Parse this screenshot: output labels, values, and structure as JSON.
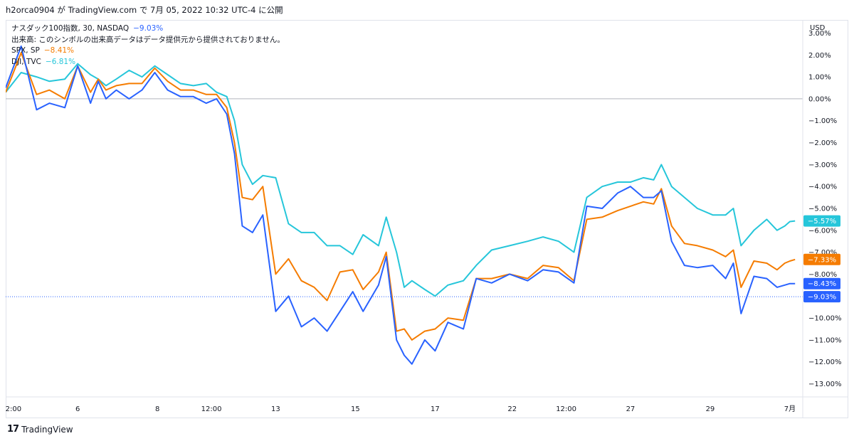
{
  "header": {
    "text": "h2orca0904 が TradingView.com で 7月 05, 2022 10:32 UTC-4 に公開"
  },
  "legend": {
    "main_name": "ナスダック100指数, 30, NASDAQ",
    "main_value": "−9.03%",
    "volume_note": "出来高: このシンボルの出来高データはデータ提供元から提供されておりません。",
    "spx_name": "SPX, SP",
    "spx_value": "−8.41%",
    "dji_name": "DJI, TVC",
    "dji_value": "−6.81%"
  },
  "footer": {
    "logo": "17",
    "brand": "TradingView"
  },
  "chart_data": {
    "type": "line",
    "ylabel": "USD",
    "ylim": [
      -13.6,
      3.6
    ],
    "yticks": [
      3,
      2,
      1,
      0,
      -1,
      -2,
      -3,
      -4,
      -5,
      -6,
      -7,
      -8,
      -9,
      -10,
      -11,
      -12,
      -13
    ],
    "ytick_labels": [
      "3.00%",
      "2.00%",
      "1.00%",
      "0.00%",
      "−1.00%",
      "−2.00%",
      "−3.00%",
      "−4.00%",
      "−5.00%",
      "−6.00%",
      "−7.00%",
      "−8.00%",
      "−9.00%",
      "−10.00%",
      "−11.00%",
      "−12.00%",
      "−13.00%"
    ],
    "xlim": [
      0,
      31
    ],
    "xticks": [
      {
        "x": 0.3,
        "label": "2:00"
      },
      {
        "x": 2.8,
        "label": "6"
      },
      {
        "x": 5.9,
        "label": "8"
      },
      {
        "x": 8.0,
        "label": "12:00"
      },
      {
        "x": 10.5,
        "label": "13"
      },
      {
        "x": 13.6,
        "label": "15"
      },
      {
        "x": 16.7,
        "label": "17"
      },
      {
        "x": 19.7,
        "label": "22"
      },
      {
        "x": 21.8,
        "label": "12:00"
      },
      {
        "x": 24.3,
        "label": "27"
      },
      {
        "x": 27.4,
        "label": "29"
      },
      {
        "x": 30.5,
        "label": "7月"
      }
    ],
    "zero_line": 0,
    "reference_line": -9.03,
    "badges": [
      {
        "value": -5.57,
        "label": "−5.57%",
        "color": "#26c6da"
      },
      {
        "value": -7.33,
        "label": "−7.33%",
        "color": "#f57c00"
      },
      {
        "value": -8.43,
        "label": "−8.43%",
        "color": "#2962ff"
      },
      {
        "value": -9.03,
        "label": "−9.03%",
        "color": "#2962ff"
      }
    ],
    "series": [
      {
        "name": "DJI, TVC",
        "color": "#26c6da",
        "x": [
          0,
          0.6,
          1.2,
          1.7,
          2.3,
          2.8,
          3.3,
          3.6,
          3.9,
          4.3,
          4.8,
          5.3,
          5.8,
          6.3,
          6.8,
          7.3,
          7.8,
          8.2,
          8.6,
          8.9,
          9.2,
          9.6,
          10.0,
          10.5,
          11.0,
          11.5,
          12.0,
          12.5,
          13.0,
          13.5,
          13.9,
          14.5,
          14.8,
          15.2,
          15.5,
          15.8,
          16.3,
          16.7,
          17.2,
          17.8,
          18.3,
          18.9,
          19.6,
          20.3,
          20.9,
          21.5,
          22.1,
          22.6,
          23.2,
          23.8,
          24.3,
          24.8,
          25.2,
          25.5,
          25.9,
          26.4,
          26.9,
          27.5,
          28.0,
          28.3,
          28.6,
          29.1,
          29.6,
          30.0,
          30.3,
          30.5,
          30.7
        ],
        "y": [
          0.3,
          1.2,
          1.0,
          0.8,
          0.9,
          1.6,
          1.1,
          0.9,
          0.6,
          0.9,
          1.3,
          1.0,
          1.5,
          1.1,
          0.7,
          0.6,
          0.7,
          0.3,
          0.1,
          -1.0,
          -3.0,
          -3.9,
          -3.5,
          -3.6,
          -5.7,
          -6.1,
          -6.1,
          -6.7,
          -6.7,
          -7.1,
          -6.2,
          -6.7,
          -5.4,
          -7.0,
          -8.6,
          -8.3,
          -8.7,
          -9.0,
          -8.5,
          -8.3,
          -7.6,
          -6.9,
          -6.7,
          -6.5,
          -6.3,
          -6.5,
          -7.0,
          -4.5,
          -4.0,
          -3.8,
          -3.8,
          -3.6,
          -3.7,
          -3.0,
          -4.0,
          -4.5,
          -5.0,
          -5.3,
          -5.3,
          -5.0,
          -6.7,
          -6.0,
          -5.5,
          -6.0,
          -5.8,
          -5.6,
          -5.57
        ]
      },
      {
        "name": "SPX, SP",
        "color": "#f57c00",
        "x": [
          0,
          0.6,
          1.2,
          1.7,
          2.3,
          2.8,
          3.3,
          3.6,
          3.9,
          4.3,
          4.8,
          5.3,
          5.8,
          6.3,
          6.8,
          7.3,
          7.8,
          8.2,
          8.6,
          8.9,
          9.2,
          9.6,
          10.0,
          10.5,
          11.0,
          11.5,
          12.0,
          12.5,
          13.0,
          13.5,
          13.9,
          14.5,
          14.8,
          15.2,
          15.5,
          15.8,
          16.3,
          16.7,
          17.2,
          17.8,
          18.3,
          18.9,
          19.6,
          20.3,
          20.9,
          21.5,
          22.1,
          22.6,
          23.2,
          23.8,
          24.3,
          24.8,
          25.2,
          25.5,
          25.9,
          26.4,
          26.9,
          27.5,
          28.0,
          28.3,
          28.6,
          29.1,
          29.6,
          30.0,
          30.3,
          30.5,
          30.7
        ],
        "y": [
          0.3,
          2.1,
          0.2,
          0.4,
          0.0,
          1.5,
          0.3,
          0.9,
          0.4,
          0.6,
          0.7,
          0.7,
          1.4,
          0.8,
          0.4,
          0.4,
          0.2,
          0.2,
          -0.4,
          -2.0,
          -4.5,
          -4.6,
          -4.0,
          -8.0,
          -7.3,
          -8.3,
          -8.6,
          -9.2,
          -7.9,
          -7.8,
          -8.7,
          -7.9,
          -7.0,
          -10.6,
          -10.5,
          -11.0,
          -10.6,
          -10.5,
          -10.0,
          -10.1,
          -8.2,
          -8.2,
          -8.0,
          -8.2,
          -7.6,
          -7.7,
          -8.3,
          -5.5,
          -5.4,
          -5.1,
          -4.9,
          -4.7,
          -4.8,
          -4.1,
          -5.8,
          -6.6,
          -6.7,
          -6.9,
          -7.2,
          -6.9,
          -8.6,
          -7.4,
          -7.5,
          -7.8,
          -7.5,
          -7.4,
          -7.33
        ]
      },
      {
        "name": "ナスダック100指数, 30, NASDAQ",
        "color": "#2962ff",
        "x": [
          0,
          0.6,
          1.2,
          1.7,
          2.3,
          2.8,
          3.3,
          3.6,
          3.9,
          4.3,
          4.8,
          5.3,
          5.8,
          6.3,
          6.8,
          7.3,
          7.8,
          8.2,
          8.6,
          8.9,
          9.2,
          9.6,
          10.0,
          10.5,
          11.0,
          11.5,
          12.0,
          12.5,
          13.0,
          13.5,
          13.9,
          14.5,
          14.8,
          15.2,
          15.5,
          15.8,
          16.3,
          16.7,
          17.2,
          17.8,
          18.3,
          18.9,
          19.6,
          20.3,
          20.9,
          21.5,
          22.1,
          22.6,
          23.2,
          23.8,
          24.3,
          24.8,
          25.2,
          25.5,
          25.9,
          26.4,
          26.9,
          27.5,
          28.0,
          28.3,
          28.6,
          29.1,
          29.6,
          30.0,
          30.3,
          30.5,
          30.7
        ],
        "y": [
          0.5,
          2.4,
          -0.5,
          -0.2,
          -0.4,
          1.5,
          -0.2,
          0.8,
          0.0,
          0.4,
          0.0,
          0.4,
          1.2,
          0.4,
          0.1,
          0.1,
          -0.2,
          0.0,
          -0.7,
          -2.5,
          -5.8,
          -6.1,
          -5.3,
          -9.7,
          -9.0,
          -10.4,
          -10.0,
          -10.6,
          -9.7,
          -8.8,
          -9.7,
          -8.5,
          -7.2,
          -11.0,
          -11.7,
          -12.1,
          -11.0,
          -11.5,
          -10.2,
          -10.5,
          -8.2,
          -8.4,
          -8.0,
          -8.3,
          -7.8,
          -7.9,
          -8.4,
          -4.9,
          -5.0,
          -4.3,
          -4.0,
          -4.5,
          -4.5,
          -4.2,
          -6.5,
          -7.6,
          -7.7,
          -7.6,
          -8.2,
          -7.5,
          -9.8,
          -8.1,
          -8.2,
          -8.6,
          -8.5,
          -8.43,
          -8.43
        ]
      }
    ]
  }
}
